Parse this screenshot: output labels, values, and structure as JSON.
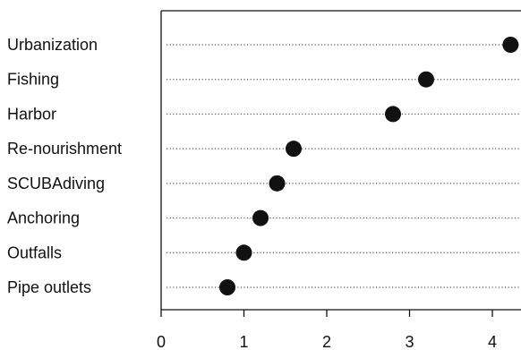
{
  "chart_data": {
    "type": "scatter",
    "subtype": "dot-plot",
    "title": "",
    "xlabel": "",
    "ylabel": "",
    "categories": [
      "Urbanization",
      "Fishing",
      "Harbor",
      "Re-nourishment",
      "SCUBAdiving",
      "Anchoring",
      "Outfalls",
      "Pipe outlets"
    ],
    "values": [
      4.22,
      3.2,
      2.8,
      1.6,
      1.4,
      1.2,
      1.0,
      0.8
    ],
    "xlim": [
      0,
      4.4
    ],
    "xticks": [
      0,
      1,
      2,
      3,
      4
    ],
    "grid": "dotted horizontal guide lines per category",
    "legend": "none",
    "colors": {
      "marker": "#111111",
      "axis": "#111111",
      "guide": "#555555"
    }
  }
}
